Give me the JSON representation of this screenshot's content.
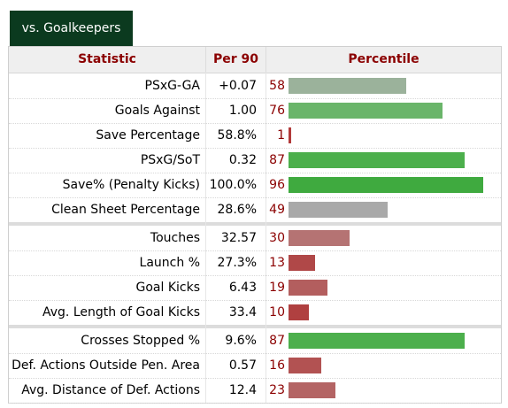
{
  "tab_label": "vs. Goalkeepers",
  "headers": {
    "statistic": "Statistic",
    "per90": "Per 90",
    "percentile": "Percentile"
  },
  "groups": [
    [
      {
        "stat": "PSxG-GA",
        "per90": "+0.07",
        "percentile": 58,
        "color": "#9bb29b"
      },
      {
        "stat": "Goals Against",
        "per90": "1.00",
        "percentile": 76,
        "color": "#6ab56a"
      },
      {
        "stat": "Save Percentage",
        "per90": "58.8%",
        "percentile": 1,
        "color": "#b23a3a"
      },
      {
        "stat": "PSxG/SoT",
        "per90": "0.32",
        "percentile": 87,
        "color": "#4caf4c"
      },
      {
        "stat": "Save% (Penalty Kicks)",
        "per90": "100.0%",
        "percentile": 96,
        "color": "#3faa3f"
      },
      {
        "stat": "Clean Sheet Percentage",
        "per90": "28.6%",
        "percentile": 49,
        "color": "#a9a9a9"
      }
    ],
    [
      {
        "stat": "Touches",
        "per90": "32.57",
        "percentile": 30,
        "color": "#b57373"
      },
      {
        "stat": "Launch %",
        "per90": "27.3%",
        "percentile": 13,
        "color": "#b04848"
      },
      {
        "stat": "Goal Kicks",
        "per90": "6.43",
        "percentile": 19,
        "color": "#b35e5e"
      },
      {
        "stat": "Avg. Length of Goal Kicks",
        "per90": "33.4",
        "percentile": 10,
        "color": "#b04040"
      }
    ],
    [
      {
        "stat": "Crosses Stopped %",
        "per90": "9.6%",
        "percentile": 87,
        "color": "#4caf4c"
      },
      {
        "stat": "Def. Actions Outside Pen. Area",
        "per90": "0.57",
        "percentile": 16,
        "color": "#b25252"
      },
      {
        "stat": "Avg. Distance of Def. Actions",
        "per90": "12.4",
        "percentile": 23,
        "color": "#b46464"
      }
    ]
  ]
}
